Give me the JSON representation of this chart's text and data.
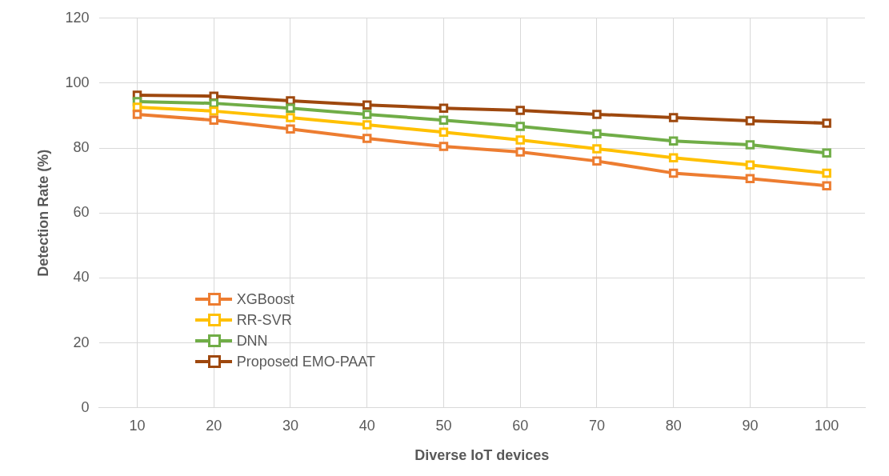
{
  "chart_data": {
    "type": "line",
    "xlabel": "Diverse IoT devices",
    "ylabel": "Detection Rate (%)",
    "categories": [
      "10",
      "20",
      "30",
      "40",
      "50",
      "60",
      "70",
      "80",
      "90",
      "100"
    ],
    "series": [
      {
        "name": "XGBoost",
        "color": "#ed7d31",
        "values": [
          90.4,
          88.6,
          85.9,
          83.0,
          80.5,
          78.8,
          76.0,
          72.3,
          70.6,
          68.4
        ]
      },
      {
        "name": "RR-SVR",
        "color": "#ffc000",
        "values": [
          92.6,
          91.4,
          89.4,
          87.2,
          84.9,
          82.5,
          79.8,
          77.0,
          74.8,
          72.3
        ]
      },
      {
        "name": "DNN",
        "color": "#70ad47",
        "values": [
          94.3,
          93.8,
          92.3,
          90.4,
          88.6,
          86.7,
          84.4,
          82.2,
          81.0,
          78.5
        ]
      },
      {
        "name": "Proposed EMO-PAAT",
        "color": "#9e480e",
        "values": [
          96.3,
          96.0,
          94.6,
          93.3,
          92.3,
          91.6,
          90.4,
          89.4,
          88.4,
          87.7
        ]
      }
    ],
    "ylim": [
      0,
      120
    ],
    "yticks": [
      0,
      20,
      40,
      60,
      80,
      100,
      120
    ],
    "grid": true,
    "legend": "bottom left",
    "marker": "square",
    "line_style": "solid"
  }
}
